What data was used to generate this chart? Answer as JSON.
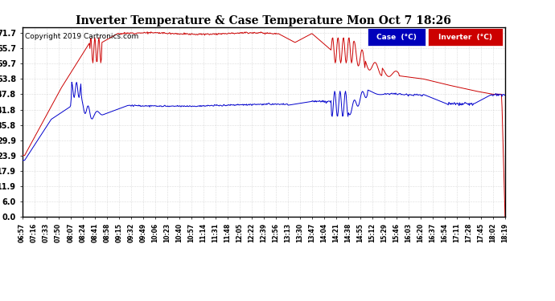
{
  "title": "Inverter Temperature & Case Temperature Mon Oct 7 18:26",
  "copyright": "Copyright 2019 Cartronics.com",
  "yticks": [
    0.0,
    6.0,
    11.9,
    17.9,
    23.9,
    29.9,
    35.8,
    41.8,
    47.8,
    53.8,
    59.7,
    65.7,
    71.7
  ],
  "ylim": [
    0.0,
    74.0
  ],
  "case_color": "#0000cc",
  "inverter_color": "#cc0000",
  "bg_color": "#ffffff",
  "plot_bg_color": "#ffffff",
  "grid_color": "#aaaaaa",
  "legend_case_bg": "#0000bb",
  "legend_inverter_bg": "#cc0000",
  "legend_case_text": "Case  (°C)",
  "legend_inverter_text": "Inverter  (°C)",
  "xtick_labels": [
    "06:57",
    "07:16",
    "07:33",
    "07:50",
    "08:07",
    "08:24",
    "08:41",
    "08:58",
    "09:15",
    "09:32",
    "09:49",
    "10:06",
    "10:23",
    "10:40",
    "10:57",
    "11:14",
    "11:31",
    "11:48",
    "12:05",
    "12:22",
    "12:39",
    "12:56",
    "13:13",
    "13:30",
    "13:47",
    "14:04",
    "14:21",
    "14:38",
    "14:55",
    "15:12",
    "15:29",
    "15:46",
    "16:03",
    "16:20",
    "16:37",
    "16:54",
    "17:11",
    "17:28",
    "17:45",
    "18:02",
    "18:19"
  ]
}
